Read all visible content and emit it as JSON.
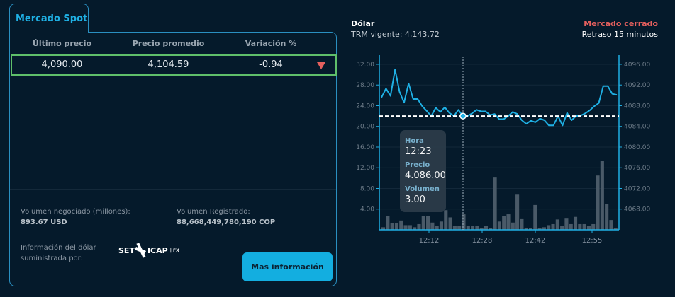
{
  "spot": {
    "tab_label": "Mercado Spot",
    "columns": [
      "Último precio",
      "Precio promedio",
      "Variación %"
    ],
    "row": {
      "last_price": "4,090.00",
      "avg_price": "4,104.59",
      "variation": "-0.94",
      "trend": "down-triangle-icon"
    },
    "volume_traded_label": "Volumen negociado (millones):",
    "volume_traded_value": "893.67 USD",
    "volume_registered_label": "Volumen Registrado:",
    "volume_registered_value": "88,668,449,780,190 COP",
    "provider_label_line1": "Información del dólar",
    "provider_label_line2": "suministrada por:",
    "provider_logo": {
      "set": "SET",
      "icap": "ICAP",
      "fx": "| FX"
    },
    "more_info_button": "Mas información"
  },
  "dollar": {
    "title": "Dólar",
    "trm": "TRM vigente: 4,143.72",
    "market_status": "Mercado cerrado",
    "delay": "Retraso 15 minutos"
  },
  "tooltip": {
    "hora_label": "Hora",
    "hora_value": "12:23",
    "precio_label": "Precio",
    "precio_value": "4.086.00",
    "volumen_label": "Volumen",
    "volumen_value": "3.00"
  },
  "colors": {
    "accent": "#1fb0e4",
    "border": "#2a8fc0",
    "up_down_red": "#e5605e",
    "row_border": "#5fbf6a",
    "bar": "#4a5a68",
    "background": "#051a2b"
  },
  "chart_data": {
    "type": "line+bar",
    "title": "Dólar",
    "x_ticks": [
      "12:12",
      "12:28",
      "12:42",
      "12:55"
    ],
    "left_axis": {
      "label": "Volumen",
      "ticks": [
        "4.00",
        "8.00",
        "12.00",
        "16.00",
        "20.00",
        "24.00",
        "28.00",
        "32.00"
      ],
      "ylim": [
        0,
        33.5
      ]
    },
    "right_axis": {
      "label": "Precio",
      "ticks": [
        "4068.00",
        "4072.00",
        "4076.00",
        "4080.00",
        "4084.00",
        "4088.00",
        "4092.00",
        "4096.00"
      ],
      "ylim": [
        4064,
        4097.5
      ]
    },
    "reference_line": 4086.0,
    "crosshair": {
      "time": "12:23",
      "price": 4086.0,
      "volume": 3.0
    },
    "series": [
      {
        "name": "Precio",
        "type": "line",
        "color": "#1fb0e4",
        "values": [
          4089.6,
          4091.3,
          4089.9,
          4095.0,
          4090.7,
          4088.6,
          4092.3,
          4089.3,
          4089.3,
          4087.9,
          4087.0,
          4086.0,
          4087.6,
          4086.8,
          4087.7,
          4086.6,
          4086.0,
          4087.2,
          4086.0,
          4086.0,
          4086.5,
          4087.2,
          4086.9,
          4086.9,
          4086.2,
          4086.4,
          4085.4,
          4085.4,
          4086.0,
          4086.8,
          4086.4,
          4085.2,
          4084.5,
          4085.1,
          4084.8,
          4085.5,
          4085.2,
          4084.2,
          4084.2,
          4086.0,
          4084.2,
          4086.6,
          4085.2,
          4086.0,
          4086.1,
          4086.5,
          4087.1,
          4087.9,
          4088.5,
          4091.8,
          4091.8,
          4090.3,
          4090.1
        ]
      },
      {
        "name": "Volumen",
        "type": "bar",
        "color": "#4a5a68",
        "values": [
          0.5,
          2.6,
          1.3,
          1.3,
          1.8,
          0.9,
          0.9,
          0.5,
          1.1,
          2.6,
          2.6,
          1.4,
          0.7,
          1.6,
          3.8,
          2.4,
          0.7,
          0.7,
          3.0,
          0.7,
          0.7,
          0.7,
          0.4,
          0.7,
          0.4,
          10.1,
          1.6,
          2.6,
          3.0,
          1.4,
          6.8,
          2.2,
          0.4,
          0.4,
          4.8,
          0.3,
          0.5,
          0.9,
          1.1,
          2.0,
          0.7,
          2.3,
          1.1,
          2.5,
          1.1,
          1.1,
          0.7,
          1.1,
          10.5,
          13.3,
          5.0,
          1.9,
          0.4
        ]
      }
    ]
  }
}
